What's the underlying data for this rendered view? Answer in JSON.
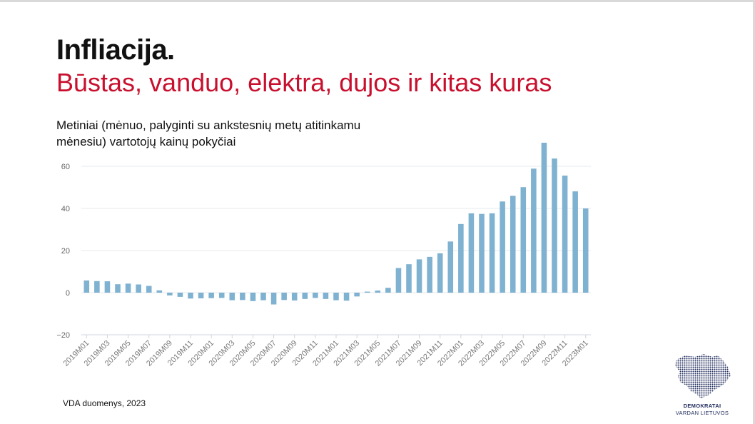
{
  "title": "Infliacija.",
  "subtitle_red": "Būstas, vanduo, elektra, dujos ir kitas kuras",
  "chart_caption": "Metiniai (mėnuo, palyginti su ankstesnių metų atitinkamu mėnesiu) vartotojų kainų pokyčiai",
  "source": "VDA duomenys, 2023",
  "logo": {
    "line1": "DEMOKRATAI",
    "line2": "VARDAN LIETUVOS",
    "color": "#1f2a5c"
  },
  "chart_data": {
    "type": "bar",
    "bar_color": "#7fb2d0",
    "ylim": [
      -20,
      70
    ],
    "yticks": [
      -20,
      0,
      20,
      40,
      60
    ],
    "ytick_labels": [
      "−20",
      "0",
      "20",
      "40",
      "60"
    ],
    "grid": true,
    "categories": [
      "2019M01",
      "2019M02",
      "2019M03",
      "2019M04",
      "2019M05",
      "2019M06",
      "2019M07",
      "2019M08",
      "2019M09",
      "2019M10",
      "2019M11",
      "2019M12",
      "2020M01",
      "2020M02",
      "2020M03",
      "2020M04",
      "2020M05",
      "2020M06",
      "2020M07",
      "2020M08",
      "2020M09",
      "2020M10",
      "2020M11",
      "2020M12",
      "2021M01",
      "2021M02",
      "2021M03",
      "2021M04",
      "2021M05",
      "2021M06",
      "2021M07",
      "2021M08",
      "2021M09",
      "2021M10",
      "2021M11",
      "2021M12",
      "2022M01",
      "2022M02",
      "2022M03",
      "2022M04",
      "2022M05",
      "2022M06",
      "2022M07",
      "2022M08",
      "2022M09",
      "2022M10",
      "2022M11",
      "2022M12",
      "2023M01"
    ],
    "values": [
      5.8,
      5.5,
      5.4,
      4.0,
      4.3,
      3.9,
      3.2,
      1.1,
      -1.3,
      -2.0,
      -2.8,
      -2.7,
      -2.6,
      -2.5,
      -3.6,
      -3.5,
      -4.0,
      -3.6,
      -5.6,
      -3.5,
      -3.7,
      -3.0,
      -2.5,
      -3.0,
      -3.6,
      -3.8,
      -1.8,
      0.5,
      1.0,
      2.3,
      11.7,
      13.5,
      15.8,
      17.0,
      18.7,
      24.3,
      32.6,
      37.7,
      37.4,
      37.7,
      43.3,
      46.0,
      50.1,
      58.9,
      71.2,
      63.7,
      55.6,
      48.1,
      40.0
    ],
    "tick_every": 2
  }
}
